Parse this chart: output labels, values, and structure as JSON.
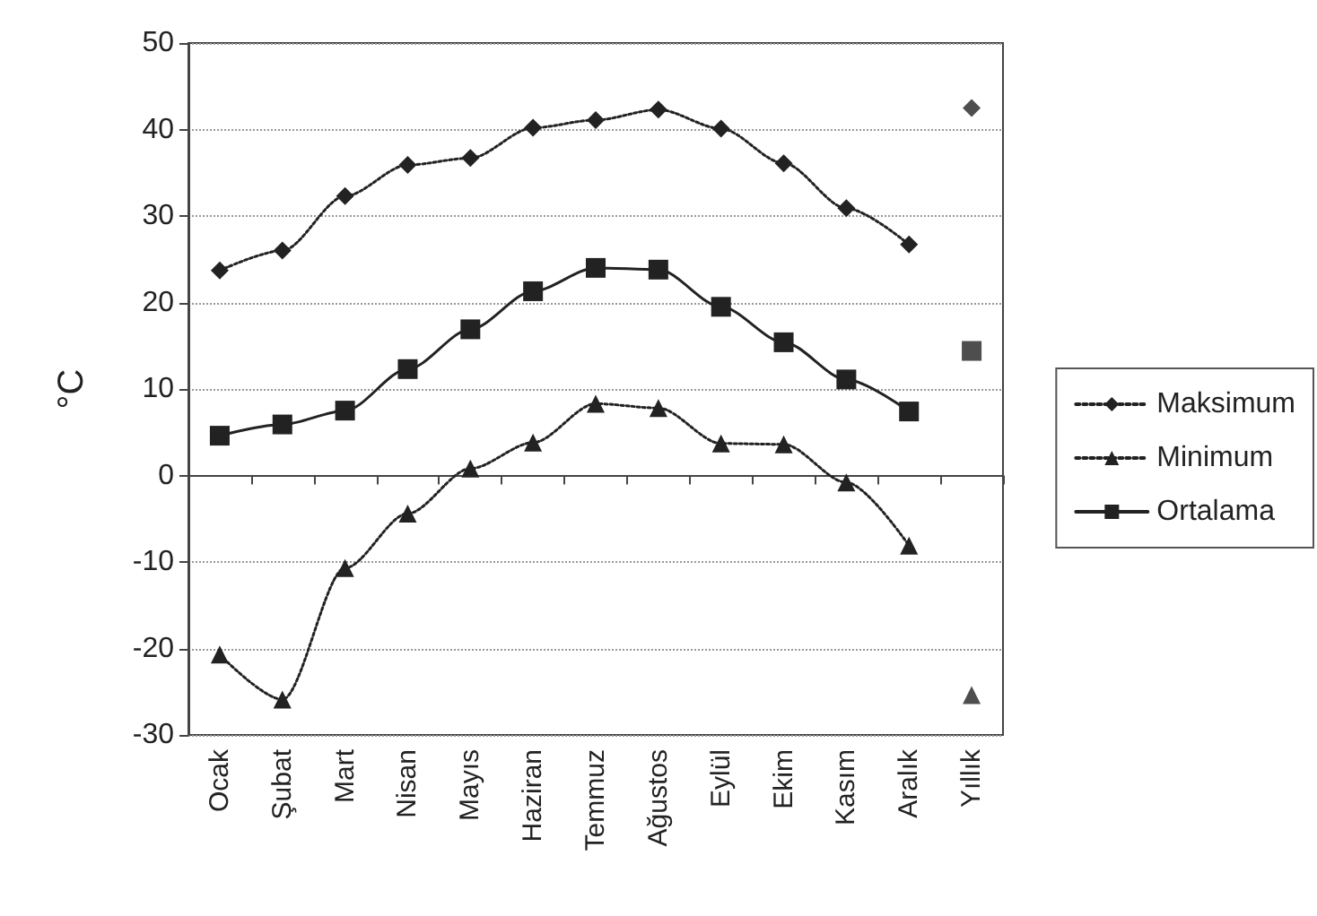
{
  "chart_data": {
    "type": "line",
    "ylabel": "°C",
    "categories": [
      "Ocak",
      "Şubat",
      "Mart",
      "Nisan",
      "Mayıs",
      "Haziran",
      "Temmuz",
      "Ağustos",
      "Eylül",
      "Ekim",
      "Kasım",
      "Aralık",
      "Yıllık"
    ],
    "ylim": [
      -30,
      50
    ],
    "yticks": [
      -30,
      -20,
      -10,
      0,
      10,
      20,
      30,
      40,
      50
    ],
    "grid": "y",
    "legend": "right",
    "series": [
      {
        "name": "Maksimum",
        "color": "#222222",
        "marker": "diamond",
        "line_style": "dotted",
        "values": [
          23.7,
          26.0,
          32.3,
          35.9,
          36.7,
          40.2,
          41.1,
          42.3,
          40.1,
          36.1,
          30.9,
          26.7,
          null
        ]
      },
      {
        "name": "Minimum",
        "color": "#222222",
        "marker": "triangle",
        "line_style": "dotted",
        "values": [
          -20.7,
          -25.9,
          -10.7,
          -4.4,
          0.8,
          3.8,
          8.3,
          7.8,
          3.7,
          3.6,
          -0.8,
          -8.1,
          null
        ]
      },
      {
        "name": "Ortalama",
        "color": "#222222",
        "marker": "square",
        "line_style": "solid",
        "values": [
          4.6,
          5.9,
          7.5,
          12.3,
          16.9,
          21.3,
          24.0,
          23.8,
          19.5,
          15.4,
          11.1,
          7.4,
          null
        ]
      },
      {
        "type": "scatter",
        "color": "#222222",
        "marker": "diamond",
        "x": [
          "Yıllık"
        ],
        "values": [
          42.5
        ]
      },
      {
        "type": "scatter",
        "color": "#222222",
        "marker": "triangle",
        "x": [
          "Yıllık"
        ],
        "values": [
          -25.4
        ]
      },
      {
        "type": "scatter",
        "color": "#222222",
        "marker": "square",
        "x": [
          "Yıllık"
        ],
        "values": [
          14.4
        ]
      }
    ]
  }
}
